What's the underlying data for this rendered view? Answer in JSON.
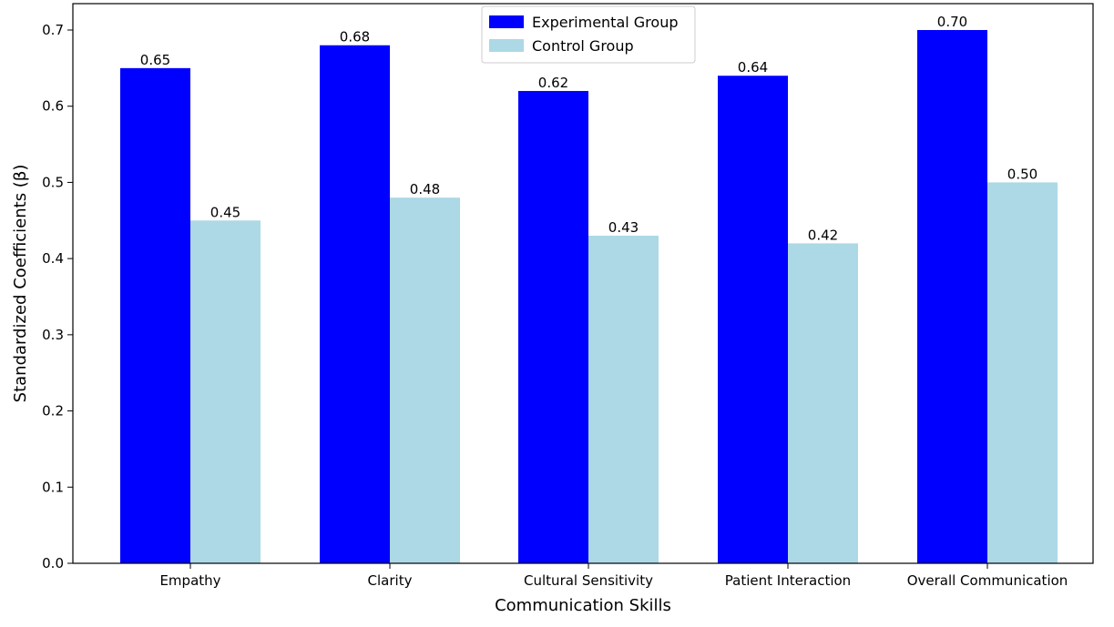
{
  "chart_data": {
    "type": "bar",
    "title": "",
    "xlabel": "Communication Skills",
    "ylabel": "Standardized Coefficients (β)",
    "categories": [
      "Empathy",
      "Clarity",
      "Cultural Sensitivity",
      "Patient Interaction",
      "Overall Communication"
    ],
    "series": [
      {
        "name": "Experimental Group",
        "color": "#0000ff",
        "values": [
          0.65,
          0.68,
          0.62,
          0.64,
          0.7
        ],
        "labels": [
          "0.65",
          "0.68",
          "0.62",
          "0.64",
          "0.70"
        ]
      },
      {
        "name": "Control Group",
        "color": "#add8e6",
        "values": [
          0.45,
          0.48,
          0.43,
          0.42,
          0.5
        ],
        "labels": [
          "0.45",
          "0.48",
          "0.43",
          "0.42",
          "0.50"
        ]
      }
    ],
    "ylim": [
      0,
      0.7
    ],
    "yticks": [
      "0.0",
      "0.1",
      "0.2",
      "0.3",
      "0.4",
      "0.5",
      "0.6",
      "0.7"
    ],
    "grid": false,
    "legend_position": "top-center"
  }
}
